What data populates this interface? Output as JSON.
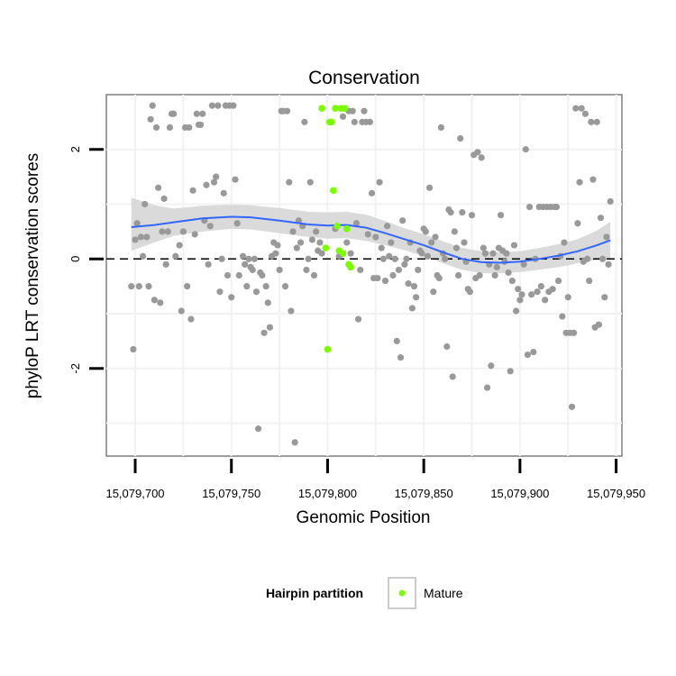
{
  "chart_data": {
    "type": "scatter",
    "title": "Conservation",
    "xlabel": "Genomic Position",
    "ylabel": "phyloP LRT conservation scores",
    "xlim": [
      15079685,
      15079953
    ],
    "ylim": [
      -3.6,
      3.0
    ],
    "x_ticks": [
      15079700,
      15079750,
      15079800,
      15079850,
      15079900,
      15079950
    ],
    "x_tick_labels": [
      "15,079,700",
      "15,079,750",
      "15,079,800",
      "15,079,850",
      "15,079,900",
      "15,079,950"
    ],
    "y_ticks": [
      -2,
      0,
      2
    ],
    "y_tick_labels": [
      "-2",
      "0",
      "2"
    ],
    "grid": true,
    "reference_line": {
      "y": 0,
      "style": "dashed"
    },
    "legend": {
      "title": "Hairpin partition",
      "placement": "bottom",
      "entries": [
        "Mature"
      ]
    },
    "colors": {
      "background_points": "#999999",
      "mature": "#7cfc00",
      "smooth_line": "#3366ff",
      "ribbon": "#d6d6d6",
      "panel_border": "#7f7f7f",
      "grid": "#f2f2f2"
    },
    "points": [
      [
        15079698,
        -0.5
      ],
      [
        15079699,
        -1.65
      ],
      [
        15079700,
        0.35
      ],
      [
        15079701,
        0.65
      ],
      [
        15079702,
        -0.5
      ],
      [
        15079703,
        0.4
      ],
      [
        15079704,
        0.05
      ],
      [
        15079705,
        1.0
      ],
      [
        15079706,
        0.4
      ],
      [
        15079707,
        -0.5
      ],
      [
        15079708,
        2.55
      ],
      [
        15079709,
        2.8
      ],
      [
        15079710,
        -0.75
      ],
      [
        15079711,
        2.4
      ],
      [
        15079712,
        1.3
      ],
      [
        15079713,
        -0.8
      ],
      [
        15079714,
        0.5
      ],
      [
        15079715,
        1.1
      ],
      [
        15079716,
        -0.1
      ],
      [
        15079717,
        0.5
      ],
      [
        15079718,
        2.4
      ],
      [
        15079719,
        2.65
      ],
      [
        15079720,
        2.65
      ],
      [
        15079721,
        0.05
      ],
      [
        15079723,
        0.25
      ],
      [
        15079724,
        -0.95
      ],
      [
        15079725,
        0.5
      ],
      [
        15079726,
        2.4
      ],
      [
        15079727,
        -0.5
      ],
      [
        15079728,
        2.4
      ],
      [
        15079729,
        -1.1
      ],
      [
        15079730,
        1.25
      ],
      [
        15079731,
        0.45
      ],
      [
        15079732,
        2.65
      ],
      [
        15079733,
        2.45
      ],
      [
        15079734,
        2.45
      ],
      [
        15079735,
        2.65
      ],
      [
        15079736,
        0.7
      ],
      [
        15079737,
        1.35
      ],
      [
        15079738,
        -0.1
      ],
      [
        15079739,
        0.6
      ],
      [
        15079740,
        2.8
      ],
      [
        15079741,
        1.4
      ],
      [
        15079742,
        1.5
      ],
      [
        15079743,
        2.8
      ],
      [
        15079744,
        -0.6
      ],
      [
        15079745,
        0.0
      ],
      [
        15079746,
        1.2
      ],
      [
        15079747,
        2.8
      ],
      [
        15079748,
        -0.3
      ],
      [
        15079749,
        2.8
      ],
      [
        15079750,
        -0.7
      ],
      [
        15079751,
        2.8
      ],
      [
        15079752,
        1.45
      ],
      [
        15079753,
        0.65
      ],
      [
        15079754,
        -0.3
      ],
      [
        15079756,
        0.05
      ],
      [
        15079757,
        -0.1
      ],
      [
        15079758,
        -0.5
      ],
      [
        15079759,
        0.0
      ],
      [
        15079760,
        -0.15
      ],
      [
        15079761,
        -0.2
      ],
      [
        15079762,
        0.0
      ],
      [
        15079763,
        -0.6
      ],
      [
        15079764,
        -3.1
      ],
      [
        15079765,
        -0.25
      ],
      [
        15079766,
        -0.3
      ],
      [
        15079767,
        -1.35
      ],
      [
        15079768,
        -0.5
      ],
      [
        15079769,
        -0.8
      ],
      [
        15079770,
        -1.25
      ],
      [
        15079771,
        0.05
      ],
      [
        15079772,
        0.3
      ],
      [
        15079773,
        0.1
      ],
      [
        15079774,
        0.25
      ],
      [
        15079775,
        -0.2
      ],
      [
        15079776,
        2.7
      ],
      [
        15079777,
        2.7
      ],
      [
        15079778,
        -0.5
      ],
      [
        15079779,
        2.7
      ],
      [
        15079780,
        1.4
      ],
      [
        15079781,
        -0.95
      ],
      [
        15079782,
        0.5
      ],
      [
        15079783,
        -3.35
      ],
      [
        15079784,
        0.2
      ],
      [
        15079785,
        0.7
      ],
      [
        15079786,
        0.3
      ],
      [
        15079787,
        0.6
      ],
      [
        15079788,
        2.5
      ],
      [
        15079789,
        -0.2
      ],
      [
        15079790,
        0.0
      ],
      [
        15079791,
        1.4
      ],
      [
        15079792,
        0.35
      ],
      [
        15079793,
        -0.3
      ],
      [
        15079794,
        0.5
      ],
      [
        15079795,
        0.15
      ],
      [
        15079796,
        0.3
      ],
      [
        15079797,
        0.1
      ],
      [
        15079804,
        0.55
      ],
      [
        15079806,
        0.05
      ],
      [
        15079808,
        2.6
      ],
      [
        15079810,
        0.3
      ],
      [
        15079811,
        2.7
      ],
      [
        15079812,
        0.1
      ],
      [
        15079813,
        2.7
      ],
      [
        15079814,
        2.5
      ],
      [
        15079815,
        0.65
      ],
      [
        15079816,
        -1.1
      ],
      [
        15079817,
        -0.2
      ],
      [
        15079818,
        2.5
      ],
      [
        15079819,
        2.7
      ],
      [
        15079820,
        2.5
      ],
      [
        15079821,
        0.45
      ],
      [
        15079822,
        2.5
      ],
      [
        15079823,
        1.2
      ],
      [
        15079824,
        -0.35
      ],
      [
        15079825,
        0.4
      ],
      [
        15079826,
        -0.35
      ],
      [
        15079827,
        1.4
      ],
      [
        15079828,
        0.2
      ],
      [
        15079829,
        0.0
      ],
      [
        15079830,
        -0.4
      ],
      [
        15079831,
        0.6
      ],
      [
        15079832,
        0.05
      ],
      [
        15079833,
        0.3
      ],
      [
        15079834,
        -0.3
      ],
      [
        15079835,
        0.0
      ],
      [
        15079836,
        -1.5
      ],
      [
        15079837,
        -0.2
      ],
      [
        15079838,
        -1.8
      ],
      [
        15079839,
        0.7
      ],
      [
        15079840,
        -0.1
      ],
      [
        15079841,
        0.0
      ],
      [
        15079842,
        -0.45
      ],
      [
        15079843,
        0.3
      ],
      [
        15079844,
        -0.9
      ],
      [
        15079845,
        -0.5
      ],
      [
        15079846,
        -0.7
      ],
      [
        15079847,
        -0.2
      ],
      [
        15079848,
        0.15
      ],
      [
        15079849,
        0.1
      ],
      [
        15079850,
        0.55
      ],
      [
        15079851,
        0.5
      ],
      [
        15079852,
        0.05
      ],
      [
        15079853,
        1.3
      ],
      [
        15079854,
        0.3
      ],
      [
        15079855,
        -0.6
      ],
      [
        15079856,
        0.4
      ],
      [
        15079857,
        -0.3
      ],
      [
        15079858,
        -0.35
      ],
      [
        15079859,
        2.4
      ],
      [
        15079860,
        0.1
      ],
      [
        15079861,
        0.0
      ],
      [
        15079862,
        -1.6
      ],
      [
        15079863,
        0.9
      ],
      [
        15079864,
        0.85
      ],
      [
        15079865,
        -2.15
      ],
      [
        15079866,
        0.5
      ],
      [
        15079867,
        0.2
      ],
      [
        15079868,
        -0.3
      ],
      [
        15079869,
        2.2
      ],
      [
        15079870,
        0.85
      ],
      [
        15079871,
        0.3
      ],
      [
        15079872,
        -0.05
      ],
      [
        15079873,
        -0.55
      ],
      [
        15079874,
        -0.6
      ],
      [
        15079875,
        0.8
      ],
      [
        15079876,
        1.9
      ],
      [
        15079877,
        -0.35
      ],
      [
        15079878,
        1.95
      ],
      [
        15079879,
        -0.3
      ],
      [
        15079880,
        1.85
      ],
      [
        15079881,
        0.2
      ],
      [
        15079882,
        0.1
      ],
      [
        15079883,
        -2.35
      ],
      [
        15079884,
        -0.1
      ],
      [
        15079885,
        -1.95
      ],
      [
        15079886,
        0.1
      ],
      [
        15079887,
        -0.3
      ],
      [
        15079888,
        -0.15
      ],
      [
        15079889,
        0.2
      ],
      [
        15079890,
        0.8
      ],
      [
        15079891,
        0.15
      ],
      [
        15079892,
        -0.05
      ],
      [
        15079893,
        0.1
      ],
      [
        15079894,
        -0.25
      ],
      [
        15079895,
        -2.05
      ],
      [
        15079896,
        -0.4
      ],
      [
        15079897,
        0.25
      ],
      [
        15079898,
        -0.95
      ],
      [
        15079899,
        -0.55
      ],
      [
        15079900,
        -0.75
      ],
      [
        15079901,
        -0.65
      ],
      [
        15079902,
        -0.1
      ],
      [
        15079903,
        2.0
      ],
      [
        15079904,
        -1.75
      ],
      [
        15079905,
        0.95
      ],
      [
        15079906,
        -0.65
      ],
      [
        15079907,
        -1.7
      ],
      [
        15079908,
        0.0
      ],
      [
        15079909,
        -0.6
      ],
      [
        15079910,
        0.95
      ],
      [
        15079911,
        -0.5
      ],
      [
        15079912,
        0.95
      ],
      [
        15079913,
        -0.75
      ],
      [
        15079914,
        0.95
      ],
      [
        15079915,
        -0.6
      ],
      [
        15079916,
        0.95
      ],
      [
        15079917,
        -0.55
      ],
      [
        15079918,
        0.95
      ],
      [
        15079919,
        0.95
      ],
      [
        15079920,
        -0.4
      ],
      [
        15079921,
        0.05
      ],
      [
        15079922,
        -1.05
      ],
      [
        15079923,
        0.3
      ],
      [
        15079924,
        -1.35
      ],
      [
        15079925,
        -0.7
      ],
      [
        15079926,
        -1.35
      ],
      [
        15079927,
        -2.7
      ],
      [
        15079928,
        -1.35
      ],
      [
        15079929,
        2.75
      ],
      [
        15079930,
        0.65
      ],
      [
        15079931,
        1.4
      ],
      [
        15079932,
        2.75
      ],
      [
        15079933,
        -0.05
      ],
      [
        15079934,
        2.65
      ],
      [
        15079935,
        0.0
      ],
      [
        15079936,
        -0.4
      ],
      [
        15079937,
        2.5
      ],
      [
        15079938,
        1.45
      ],
      [
        15079939,
        -1.25
      ],
      [
        15079940,
        2.5
      ],
      [
        15079941,
        -1.2
      ],
      [
        15079942,
        0.75
      ],
      [
        15079943,
        0.0
      ],
      [
        15079944,
        -0.7
      ],
      [
        15079945,
        0.4
      ],
      [
        15079946,
        -0.1
      ],
      [
        15079947,
        1.05
      ]
    ],
    "mature_points": [
      [
        15079797,
        2.75
      ],
      [
        15079799,
        0.2
      ],
      [
        15079800,
        -1.65
      ],
      [
        15079801,
        2.5
      ],
      [
        15079802,
        2.5
      ],
      [
        15079803,
        1.25
      ],
      [
        15079804,
        2.75
      ],
      [
        15079805,
        0.6
      ],
      [
        15079806,
        0.15
      ],
      [
        15079807,
        2.75
      ],
      [
        15079808,
        0.1
      ],
      [
        15079809,
        2.75
      ],
      [
        15079810,
        0.55
      ],
      [
        15079811,
        -0.1
      ],
      [
        15079812,
        -0.15
      ]
    ],
    "smooth": {
      "x": [
        15079698,
        15079710,
        15079720,
        15079735,
        15079750,
        15079760,
        15079775,
        15079790,
        15079800,
        15079810,
        15079820,
        15079830,
        15079840,
        15079850,
        15079860,
        15079870,
        15079880,
        15079890,
        15079900,
        15079910,
        15079920,
        15079930,
        15079940,
        15079947
      ],
      "y": [
        0.58,
        0.62,
        0.67,
        0.74,
        0.77,
        0.76,
        0.7,
        0.63,
        0.61,
        0.62,
        0.57,
        0.47,
        0.36,
        0.25,
        0.12,
        0.0,
        -0.06,
        -0.07,
        -0.05,
        0.0,
        0.06,
        0.14,
        0.25,
        0.34
      ],
      "lower": [
        0.15,
        0.3,
        0.42,
        0.5,
        0.55,
        0.54,
        0.47,
        0.4,
        0.37,
        0.38,
        0.33,
        0.25,
        0.16,
        0.05,
        -0.08,
        -0.2,
        -0.26,
        -0.26,
        -0.24,
        -0.2,
        -0.15,
        -0.08,
        -0.02,
        0.0
      ],
      "upper": [
        1.12,
        0.98,
        0.92,
        0.97,
        0.99,
        0.98,
        0.93,
        0.86,
        0.85,
        0.86,
        0.81,
        0.69,
        0.56,
        0.45,
        0.32,
        0.2,
        0.14,
        0.12,
        0.14,
        0.2,
        0.27,
        0.36,
        0.52,
        0.68
      ]
    }
  }
}
